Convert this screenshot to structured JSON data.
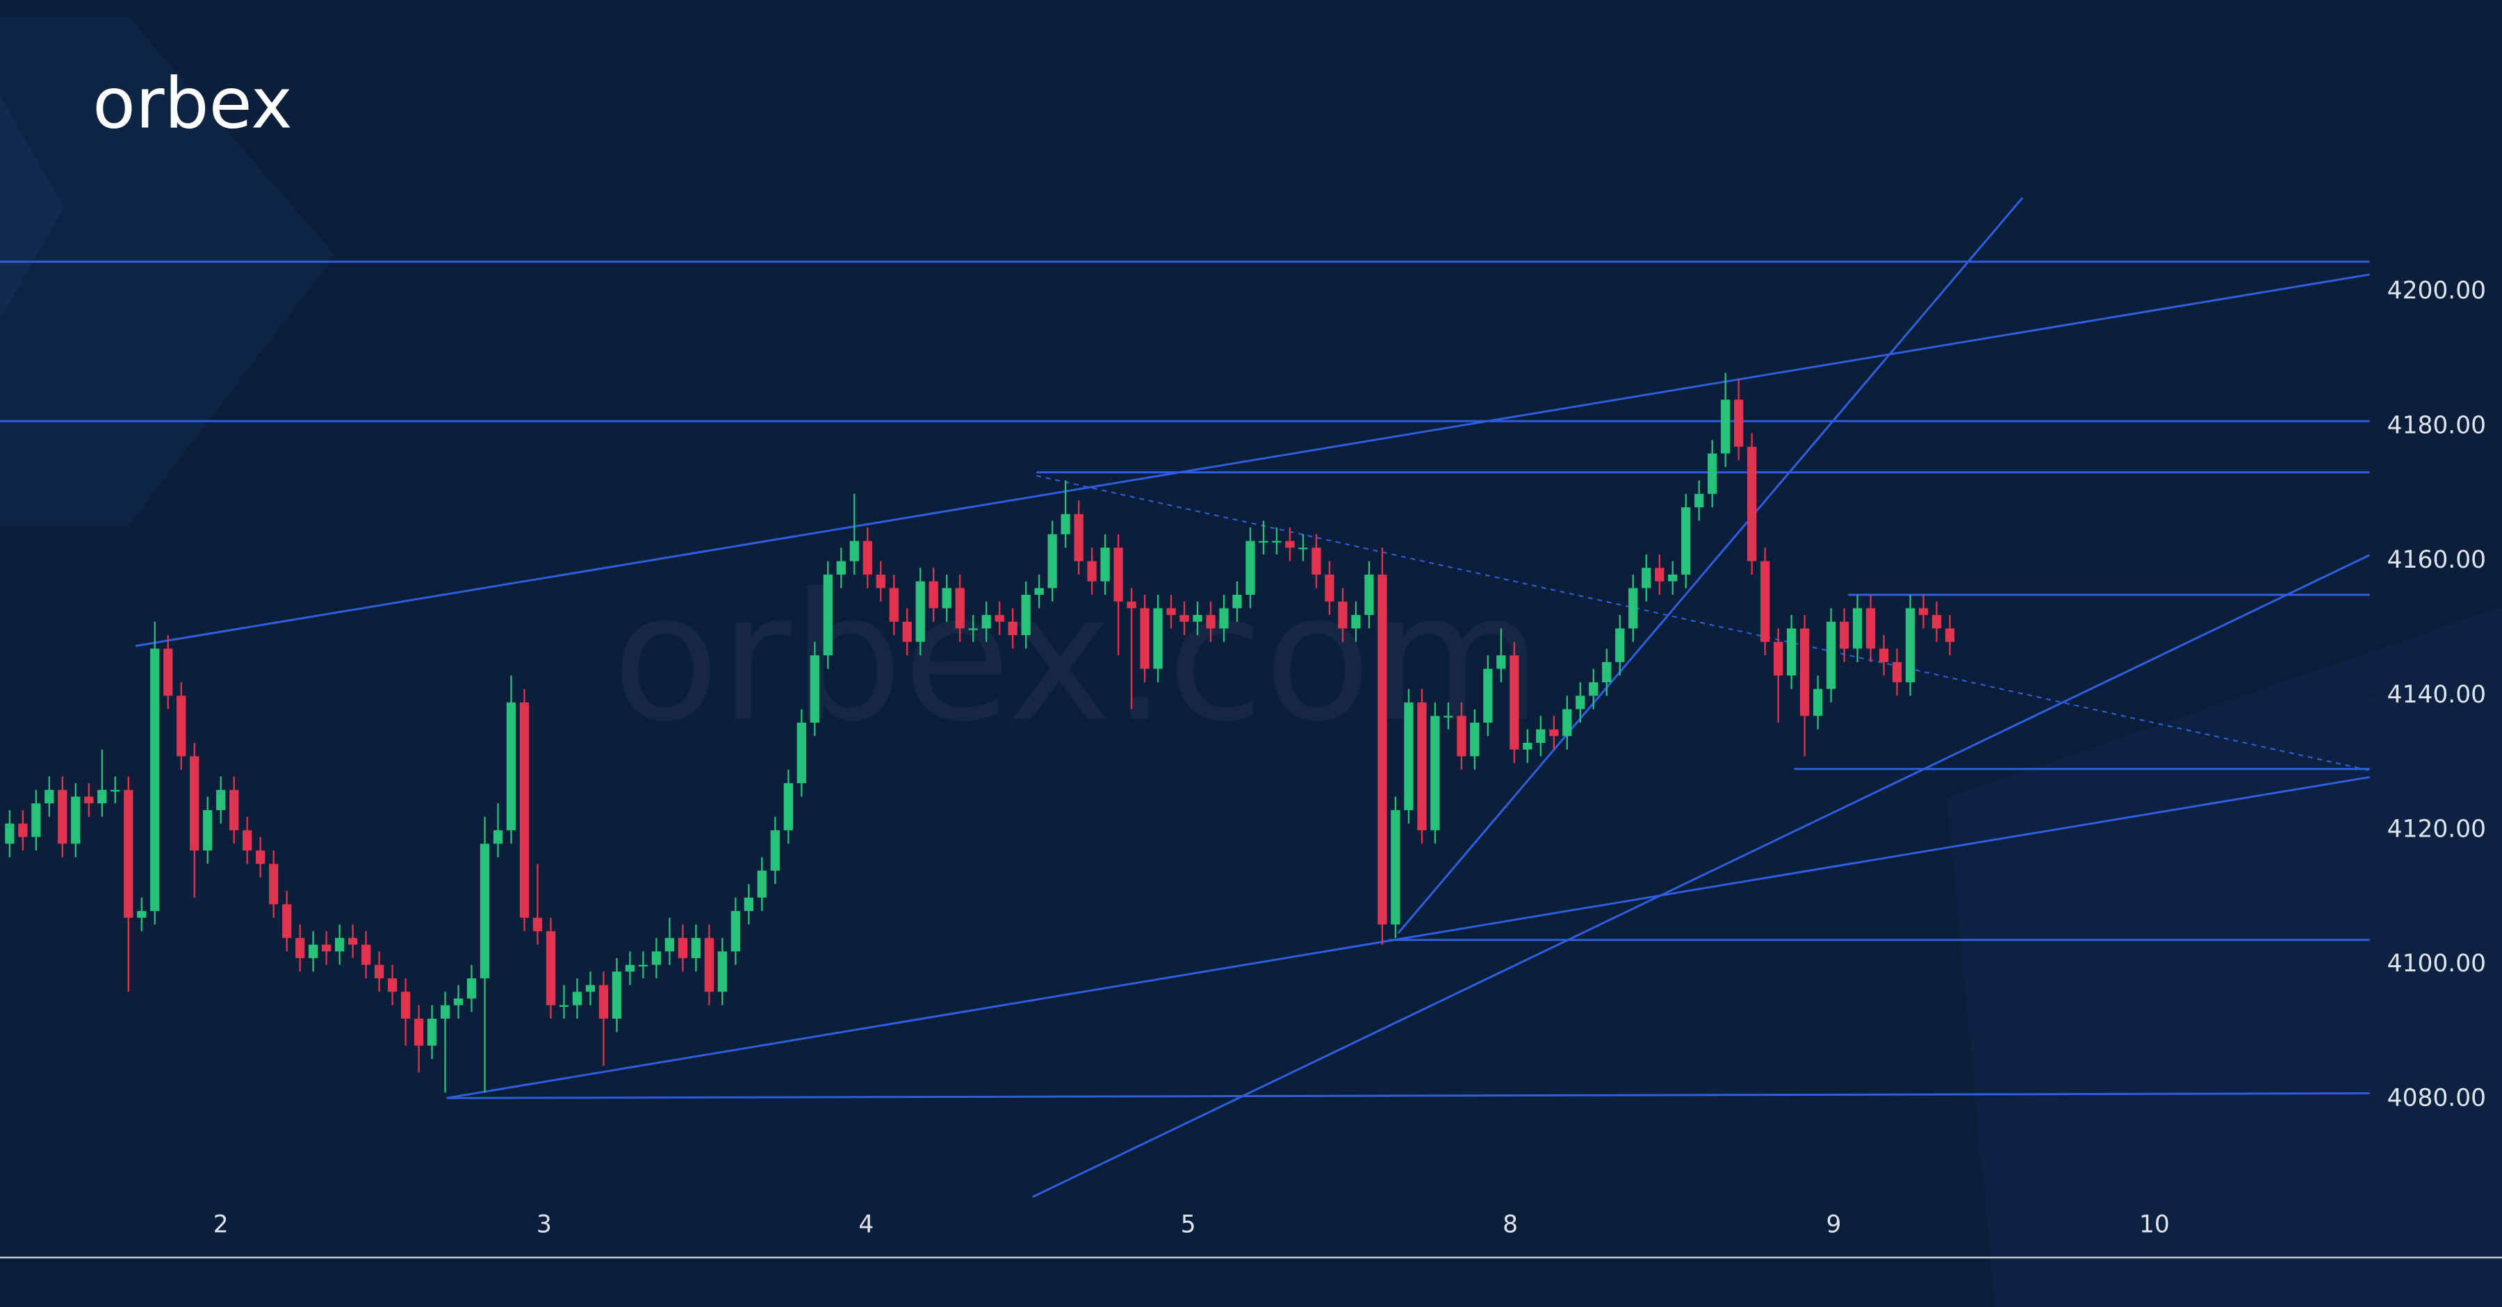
{
  "chart_data": {
    "type": "candlestick",
    "logo": "orbex",
    "watermark": "orbex.com",
    "up_color": "#27c27a",
    "down_color": "#e3344f",
    "line_color": "#2f5fe0",
    "xlim": [
      -0.73,
      178.8
    ],
    "ylim": [
      4056.5,
      4243.4
    ],
    "xticks": [
      {
        "value": 16,
        "label": "2"
      },
      {
        "value": 40.5,
        "label": "3"
      },
      {
        "value": 64.9,
        "label": "4"
      },
      {
        "value": 89.3,
        "label": "5"
      },
      {
        "value": 113.7,
        "label": "8"
      },
      {
        "value": 138.2,
        "label": "9"
      },
      {
        "value": 162.5,
        "label": "10"
      }
    ],
    "yticks": [
      {
        "value": 4080,
        "label": "4080.00"
      },
      {
        "value": 4100,
        "label": "4100.00"
      },
      {
        "value": 4120,
        "label": "4120.00"
      },
      {
        "value": 4140,
        "label": "4140.00"
      },
      {
        "value": 4160,
        "label": "4160.00"
      },
      {
        "value": 4180,
        "label": "4180.00"
      },
      {
        "value": 4200,
        "label": "4200.00"
      }
    ],
    "candles": [
      [
        4118,
        4123,
        4116,
        4121
      ],
      [
        4121,
        4123,
        4117,
        4119
      ],
      [
        4119,
        4126,
        4117,
        4124
      ],
      [
        4124,
        4128,
        4122,
        4126
      ],
      [
        4126,
        4128,
        4116,
        4118
      ],
      [
        4118,
        4127,
        4116,
        4125
      ],
      [
        4125,
        4127,
        4122,
        4124
      ],
      [
        4124,
        4132,
        4122,
        4126
      ],
      [
        4126,
        4128,
        4124,
        4126
      ],
      [
        4126,
        4128,
        4096,
        4107
      ],
      [
        4107,
        4110,
        4105,
        4108
      ],
      [
        4108,
        4151,
        4106,
        4147
      ],
      [
        4147,
        4149,
        4138,
        4140
      ],
      [
        4140,
        4142,
        4129,
        4131
      ],
      [
        4131,
        4133,
        4110,
        4117
      ],
      [
        4117,
        4125,
        4115,
        4123
      ],
      [
        4123,
        4128,
        4121,
        4126
      ],
      [
        4126,
        4128,
        4118,
        4120
      ],
      [
        4120,
        4122,
        4115,
        4117
      ],
      [
        4117,
        4119,
        4113,
        4115
      ],
      [
        4115,
        4117,
        4107,
        4109
      ],
      [
        4109,
        4111,
        4102,
        4104
      ],
      [
        4104,
        4106,
        4099,
        4101
      ],
      [
        4101,
        4105,
        4099,
        4103
      ],
      [
        4103,
        4105,
        4100,
        4102
      ],
      [
        4102,
        4106,
        4100,
        4104
      ],
      [
        4104,
        4106,
        4101,
        4103
      ],
      [
        4103,
        4105,
        4098,
        4100
      ],
      [
        4100,
        4102,
        4096,
        4098
      ],
      [
        4098,
        4100,
        4094,
        4096
      ],
      [
        4096,
        4098,
        4088,
        4092
      ],
      [
        4092,
        4094,
        4084,
        4088
      ],
      [
        4088,
        4094,
        4086,
        4092
      ],
      [
        4092,
        4096,
        4081,
        4094
      ],
      [
        4094,
        4097,
        4092,
        4095
      ],
      [
        4095,
        4100,
        4093,
        4098
      ],
      [
        4098,
        4122,
        4081,
        4118
      ],
      [
        4118,
        4124,
        4116,
        4120
      ],
      [
        4120,
        4143,
        4118,
        4139
      ],
      [
        4139,
        4141,
        4105,
        4107
      ],
      [
        4107,
        4115,
        4103,
        4105
      ],
      [
        4105,
        4107,
        4092,
        4094
      ],
      [
        4094,
        4097,
        4092,
        4094
      ],
      [
        4094,
        4098,
        4092,
        4096
      ],
      [
        4096,
        4099,
        4094,
        4097
      ],
      [
        4097,
        4099,
        4085,
        4092
      ],
      [
        4092,
        4101,
        4090,
        4099
      ],
      [
        4099,
        4102,
        4097,
        4100
      ],
      [
        4100,
        4102,
        4098,
        4100
      ],
      [
        4100,
        4104,
        4098,
        4102
      ],
      [
        4102,
        4107,
        4100,
        4104
      ],
      [
        4104,
        4106,
        4099,
        4101
      ],
      [
        4101,
        4106,
        4099,
        4104
      ],
      [
        4104,
        4106,
        4094,
        4096
      ],
      [
        4096,
        4104,
        4094,
        4102
      ],
      [
        4102,
        4110,
        4100,
        4108
      ],
      [
        4108,
        4112,
        4106,
        4110
      ],
      [
        4110,
        4116,
        4108,
        4114
      ],
      [
        4114,
        4122,
        4112,
        4120
      ],
      [
        4120,
        4129,
        4118,
        4127
      ],
      [
        4127,
        4138,
        4125,
        4136
      ],
      [
        4136,
        4148,
        4134,
        4146
      ],
      [
        4146,
        4160,
        4144,
        4158
      ],
      [
        4158,
        4162,
        4156,
        4160
      ],
      [
        4160,
        4170,
        4158,
        4163
      ],
      [
        4163,
        4165,
        4156,
        4158
      ],
      [
        4158,
        4160,
        4154,
        4156
      ],
      [
        4156,
        4158,
        4149,
        4151
      ],
      [
        4151,
        4153,
        4146,
        4148
      ],
      [
        4148,
        4159,
        4146,
        4157
      ],
      [
        4157,
        4159,
        4151,
        4153
      ],
      [
        4153,
        4158,
        4151,
        4156
      ],
      [
        4156,
        4158,
        4148,
        4150
      ],
      [
        4150,
        4152,
        4148,
        4150
      ],
      [
        4150,
        4154,
        4148,
        4152
      ],
      [
        4152,
        4154,
        4149,
        4151
      ],
      [
        4151,
        4153,
        4147,
        4149
      ],
      [
        4149,
        4157,
        4147,
        4155
      ],
      [
        4155,
        4158,
        4153,
        4156
      ],
      [
        4156,
        4166,
        4154,
        4164
      ],
      [
        4164,
        4172,
        4162,
        4167
      ],
      [
        4167,
        4169,
        4158,
        4160
      ],
      [
        4160,
        4162,
        4155,
        4157
      ],
      [
        4157,
        4164,
        4155,
        4162
      ],
      [
        4162,
        4164,
        4146,
        4154
      ],
      [
        4154,
        4156,
        4138,
        4153
      ],
      [
        4153,
        4155,
        4142,
        4144
      ],
      [
        4144,
        4155,
        4142,
        4153
      ],
      [
        4153,
        4155,
        4150,
        4152
      ],
      [
        4152,
        4154,
        4149,
        4151
      ],
      [
        4151,
        4154,
        4149,
        4152
      ],
      [
        4152,
        4154,
        4148,
        4150
      ],
      [
        4150,
        4155,
        4148,
        4153
      ],
      [
        4153,
        4157,
        4151,
        4155
      ],
      [
        4155,
        4165,
        4153,
        4163
      ],
      [
        4163,
        4166,
        4161,
        4163
      ],
      [
        4163,
        4165,
        4161,
        4163
      ],
      [
        4163,
        4165,
        4160,
        4162
      ],
      [
        4162,
        4164,
        4160,
        4162
      ],
      [
        4162,
        4164,
        4156,
        4158
      ],
      [
        4158,
        4160,
        4152,
        4154
      ],
      [
        4154,
        4156,
        4148,
        4150
      ],
      [
        4150,
        4154,
        4148,
        4152
      ],
      [
        4152,
        4160,
        4150,
        4158
      ],
      [
        4158,
        4162,
        4103,
        4106
      ],
      [
        4106,
        4125,
        4104,
        4123
      ],
      [
        4123,
        4141,
        4121,
        4139
      ],
      [
        4139,
        4141,
        4118,
        4120
      ],
      [
        4120,
        4139,
        4118,
        4137
      ],
      [
        4137,
        4139,
        4135,
        4137
      ],
      [
        4137,
        4139,
        4129,
        4131
      ],
      [
        4131,
        4138,
        4129,
        4136
      ],
      [
        4136,
        4146,
        4134,
        4144
      ],
      [
        4144,
        4150,
        4142,
        4146
      ],
      [
        4146,
        4148,
        4130,
        4132
      ],
      [
        4132,
        4135,
        4130,
        4133
      ],
      [
        4133,
        4137,
        4131,
        4135
      ],
      [
        4135,
        4137,
        4132,
        4134
      ],
      [
        4134,
        4140,
        4132,
        4138
      ],
      [
        4138,
        4142,
        4136,
        4140
      ],
      [
        4140,
        4144,
        4138,
        4142
      ],
      [
        4142,
        4147,
        4140,
        4145
      ],
      [
        4145,
        4152,
        4143,
        4150
      ],
      [
        4150,
        4158,
        4148,
        4156
      ],
      [
        4156,
        4161,
        4154,
        4159
      ],
      [
        4159,
        4161,
        4155,
        4157
      ],
      [
        4157,
        4160,
        4155,
        4158
      ],
      [
        4158,
        4170,
        4156,
        4168
      ],
      [
        4168,
        4172,
        4166,
        4170
      ],
      [
        4170,
        4178,
        4168,
        4176
      ],
      [
        4176,
        4188,
        4174,
        4184
      ],
      [
        4184,
        4187,
        4175,
        4177
      ],
      [
        4177,
        4179,
        4158,
        4160
      ],
      [
        4160,
        4162,
        4146,
        4148
      ],
      [
        4148,
        4150,
        4136,
        4143
      ],
      [
        4143,
        4152,
        4141,
        4150
      ],
      [
        4150,
        4152,
        4131,
        4137
      ],
      [
        4137,
        4143,
        4135,
        4141
      ],
      [
        4141,
        4153,
        4139,
        4151
      ],
      [
        4151,
        4153,
        4145,
        4147
      ],
      [
        4147,
        4155,
        4145,
        4153
      ],
      [
        4153,
        4155,
        4145,
        4147
      ],
      [
        4147,
        4149,
        4143,
        4145
      ],
      [
        4145,
        4147,
        4140,
        4142
      ],
      [
        4142,
        4155,
        4140,
        4153
      ],
      [
        4153,
        4155,
        4150,
        4152
      ],
      [
        4152,
        4154,
        4148,
        4150
      ],
      [
        4150,
        4152,
        4146,
        4148
      ]
    ],
    "lines": [
      {
        "points": [
          -0.73,
          4204.5,
          178.8,
          4204.5
        ]
      },
      {
        "points": [
          -0.73,
          4180.8,
          178.8,
          4180.8
        ]
      },
      {
        "points": [
          77.8,
          4173.2,
          178.8,
          4173.2
        ]
      },
      {
        "points": [
          139.3,
          4155,
          178.8,
          4155
        ]
      },
      {
        "points": [
          135.2,
          4129.1,
          178.8,
          4129.1
        ]
      },
      {
        "points": [
          104.5,
          4103.7,
          178.8,
          4103.7
        ]
      },
      {
        "points": [
          33.1,
          4080.2,
          178.8,
          4080.9
        ]
      },
      {
        "points": [
          9.55,
          4147.4,
          178.8,
          4202.6
        ]
      },
      {
        "points": [
          33.1,
          4080.2,
          178.8,
          4127.9
        ]
      },
      {
        "points": [
          77.5,
          4065.5,
          178.8,
          4160.9
        ]
      },
      {
        "points": [
          105.2,
          4104.7,
          152.5,
          4214
        ]
      },
      {
        "points": [
          77.8,
          4172.7,
          178.8,
          4128.9
        ],
        "dashed": true
      }
    ]
  }
}
